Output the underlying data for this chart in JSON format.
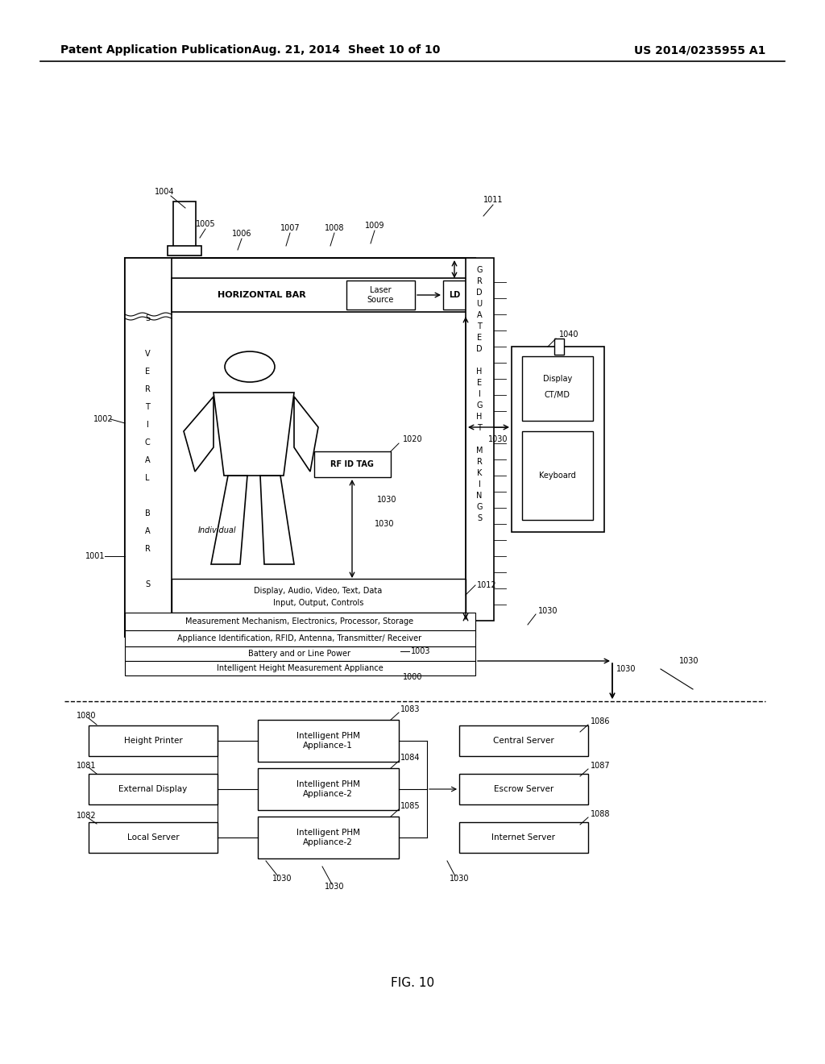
{
  "bg_color": "#ffffff",
  "title_left": "Patent Application Publication",
  "title_mid": "Aug. 21, 2014  Sheet 10 of 10",
  "title_right": "US 2014/0235955 A1",
  "fig_label": "FIG. 10"
}
